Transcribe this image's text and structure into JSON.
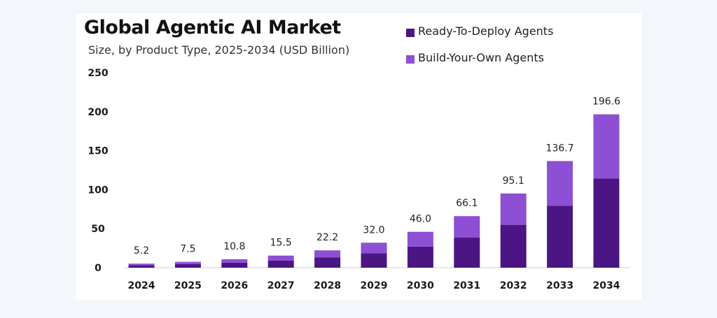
{
  "header": {
    "title": "Global Agentic AI Market",
    "subtitle": "Size, by Product Type, 2025-2034 (USD Billion)"
  },
  "legend": {
    "position": "top-right",
    "items": [
      {
        "label": "Ready-To-Deploy Agents",
        "color": "#4b1583"
      },
      {
        "label": "Build-Your-Own Agents",
        "color": "#8d4fd3"
      }
    ]
  },
  "chart_data": {
    "type": "bar",
    "stacked": true,
    "title": "Global Agentic AI Market",
    "subtitle": "Size, by Product Type, 2025-2034 (USD Billion)",
    "xlabel": "",
    "ylabel": "",
    "ylim": [
      0,
      250
    ],
    "yticks": [
      0,
      50,
      100,
      150,
      200,
      250
    ],
    "grid": false,
    "legend_position": "top-right",
    "categories": [
      "2024",
      "2025",
      "2026",
      "2027",
      "2028",
      "2029",
      "2030",
      "2031",
      "2032",
      "2033",
      "2034"
    ],
    "series": [
      {
        "name": "Ready-To-Deploy Agents",
        "color": "#4b1583",
        "values": [
          3.0,
          4.5,
          6.5,
          9.0,
          13.0,
          18.5,
          27.0,
          38.5,
          55.0,
          79.5,
          114.5
        ]
      },
      {
        "name": "Build-Your-Own Agents",
        "color": "#8d4fd3",
        "values": [
          2.2,
          3.0,
          4.3,
          6.5,
          9.2,
          13.5,
          19.0,
          27.6,
          40.1,
          57.2,
          82.1
        ]
      }
    ],
    "totals": [
      "5.2",
      "7.5",
      "10.8",
      "15.5",
      "22.2",
      "32.0",
      "46.0",
      "66.1",
      "95.1",
      "136.7",
      "196.6"
    ]
  }
}
